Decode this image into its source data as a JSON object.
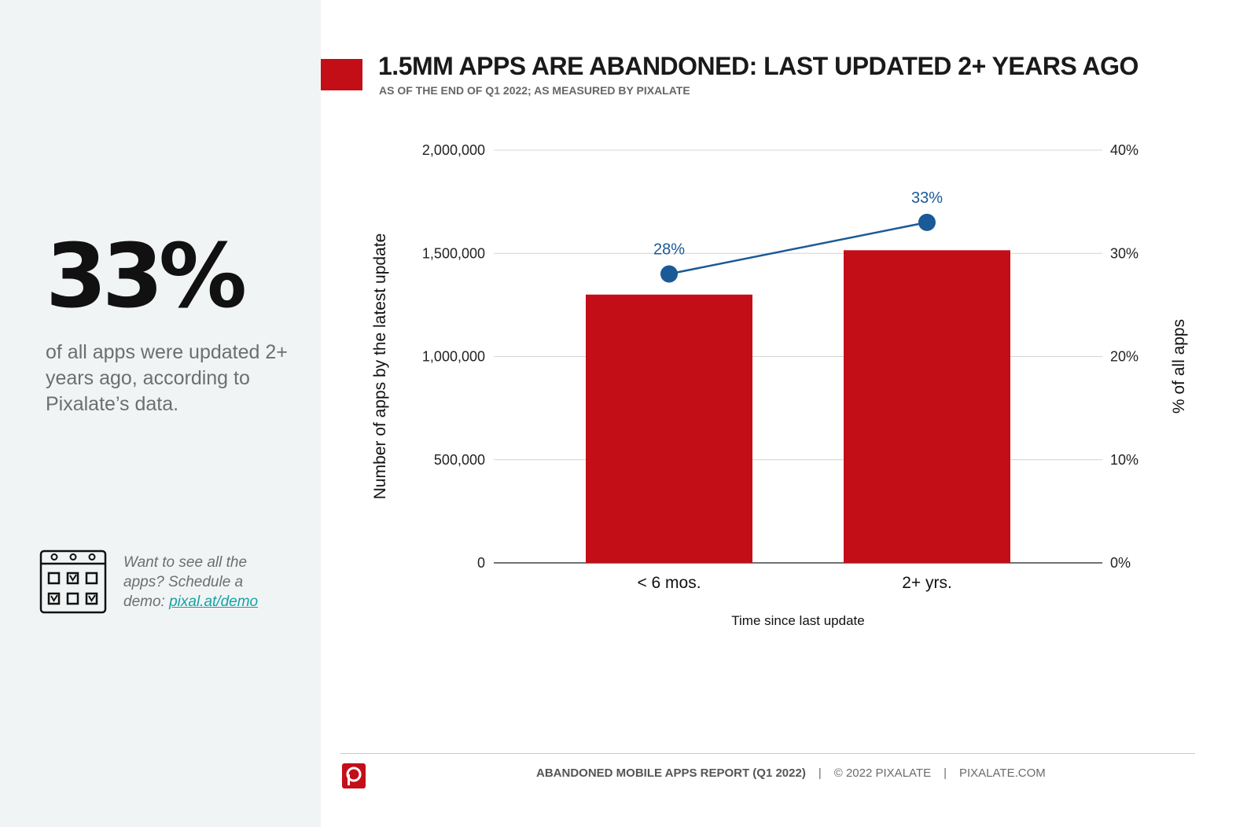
{
  "sidebar": {
    "big_stat": "33%",
    "description": "of all apps were updated 2+ years ago, according to Pixalate’s data.",
    "cta_text": "Want to see all the apps? Schedule a demo: ",
    "cta_link": "pixal.at/demo"
  },
  "header": {
    "title": "1.5MM APPS ARE ABANDONED: LAST UPDATED 2+ YEARS AGO",
    "subtitle": "AS OF THE END OF Q1 2022; AS MEASURED BY PIXALATE"
  },
  "colors": {
    "brand_red": "#c30e18",
    "line_blue": "#1a5a96",
    "grid": "#d4d4d4",
    "sidebar_bg": "#f1f4f4"
  },
  "chart_data": {
    "type": "bar",
    "categories": [
      "< 6 mos.",
      "2+ yrs."
    ],
    "series": [
      {
        "name": "Number of apps",
        "type": "bar",
        "axis": "left",
        "values": [
          1300000,
          1515000
        ]
      },
      {
        "name": "% of all apps",
        "type": "line",
        "axis": "right",
        "values": [
          28,
          33
        ],
        "labels": [
          "28%",
          "33%"
        ]
      }
    ],
    "xlabel": "Time since last update",
    "ylabel": "Number of apps by the latest update",
    "y2label": "% of all apps",
    "ylim": [
      0,
      2000000
    ],
    "y2lim": [
      0,
      40
    ],
    "yticks": [
      "0",
      "500,000",
      "1,000,000",
      "1,500,000",
      "2,000,000"
    ],
    "y2ticks": [
      "0%",
      "10%",
      "20%",
      "30%",
      "40%"
    ],
    "grid": true
  },
  "footer": {
    "report": "ABANDONED MOBILE APPS REPORT (Q1 2022)",
    "copyright": "© 2022 PIXALATE",
    "site": "PIXALATE.COM",
    "separator": "|"
  }
}
